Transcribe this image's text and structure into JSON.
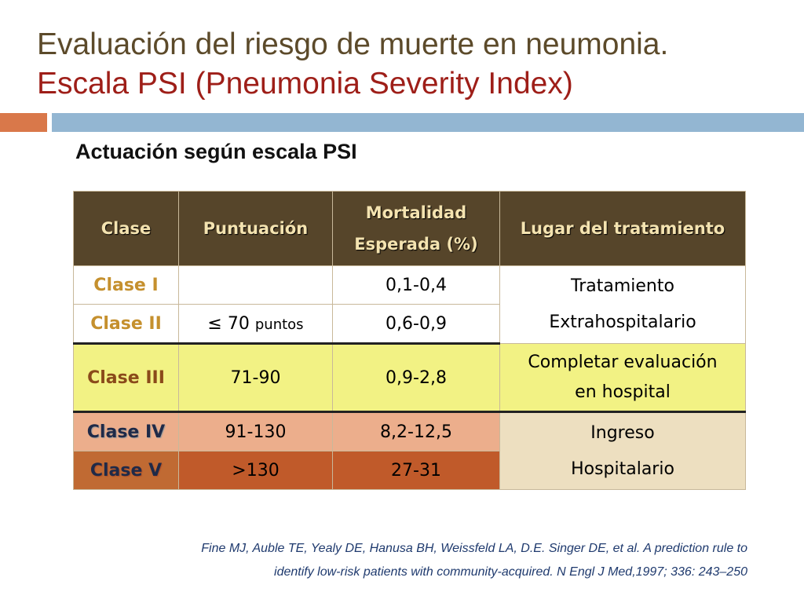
{
  "title": {
    "line1": "Evaluación del riesgo de muerte en neumonia.",
    "line2": "Escala PSI (Pneumonia Severity Index)"
  },
  "subtitle": "Actuación según escala PSI",
  "table": {
    "headers": {
      "clase": "Clase",
      "puntuacion": "Puntuación",
      "mortalidad_line1": "Mortalidad",
      "mortalidad_line2": "Esperada (%)",
      "lugar": "Lugar del tratamiento"
    },
    "rows": [
      {
        "clase": "Clase I",
        "puntuacion": "",
        "mortalidad": "0,1-0,4"
      },
      {
        "clase": "Clase II",
        "puntuacion_symbol": "≤",
        "puntuacion_num": "70",
        "puntuacion_unit": "puntos",
        "mortalidad": "0,6-0,9"
      },
      {
        "clase": "Clase III",
        "puntuacion": "71-90",
        "mortalidad": "0,9-2,8"
      },
      {
        "clase": "Clase IV",
        "puntuacion": "91-130",
        "mortalidad": "8,2-12,5"
      },
      {
        "clase": "Clase V",
        "puntuacion": ">130",
        "mortalidad": "27-31"
      }
    ],
    "lugar": {
      "group1_line1": "Tratamiento",
      "group1_line2": "Extrahospitalario",
      "group2_line1": "Completar evaluación",
      "group2_line2": "en hospital",
      "group3_line1": "Ingreso",
      "group3_line2": "Hospitalario"
    }
  },
  "reference": {
    "line1": "Fine MJ, Auble TE,  Yealy DE, Hanusa BH, Weissfeld LA, D.E. Singer DE, et al. A prediction rule to",
    "line2": "identify low-risk patients with community-acquired.  N Engl J Med,1997; 336: 243–250"
  },
  "colors": {
    "title_line1": "#5c4a2a",
    "title_line2": "#9e1e18",
    "header_bg": "#56452a",
    "clase3_bg": "#f2f284",
    "clase4_bg": "#ecae8c",
    "clase5_bg": "#c05a2a",
    "accent_bar_left": "#d9784a",
    "accent_bar_right": "#93b6d2"
  }
}
